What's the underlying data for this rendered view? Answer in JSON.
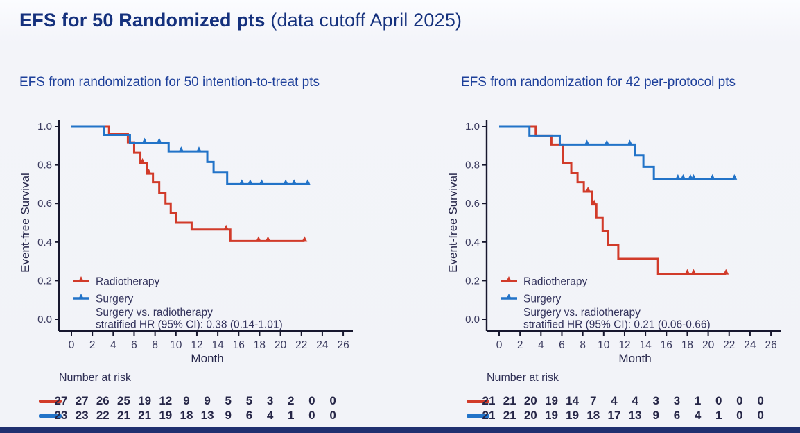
{
  "title": {
    "main": "EFS for 50 Randomized pts",
    "suffix": " (data cutoff April 2025)"
  },
  "chart_data": [
    {
      "type": "line",
      "subtitle": "EFS from randomization for 50 intention-to-treat pts",
      "xlabel": "Month",
      "ylabel": "Event-free Survival",
      "xlim": [
        0,
        26
      ],
      "ylim": [
        0.0,
        1.0
      ],
      "xticks": [
        0,
        2,
        4,
        6,
        8,
        10,
        12,
        14,
        16,
        18,
        20,
        22,
        24,
        26
      ],
      "yticks": [
        0.0,
        0.2,
        0.4,
        0.6,
        0.8,
        1.0
      ],
      "grid": false,
      "legend_position": "lower-left-inside",
      "legend_note": [
        "Surgery vs. radiotherapy",
        "stratified HR (95% CI): 0.38 (0.14-1.01)"
      ],
      "series": [
        {
          "name": "Radiotherapy",
          "color": "#d13b2a",
          "steps": [
            [
              0,
              1.0
            ],
            [
              3.6,
              0.96
            ],
            [
              5.4,
              0.917
            ],
            [
              6.0,
              0.863
            ],
            [
              6.6,
              0.81
            ],
            [
              7.2,
              0.755
            ],
            [
              7.8,
              0.71
            ],
            [
              8.4,
              0.655
            ],
            [
              9.0,
              0.6
            ],
            [
              9.5,
              0.55
            ],
            [
              10.0,
              0.5
            ],
            [
              11.5,
              0.465
            ],
            [
              15.2,
              0.405
            ]
          ],
          "censors": [
            6.8,
            7.4,
            14.8,
            17.9,
            18.8,
            22.3
          ],
          "end": 22.3
        },
        {
          "name": "Surgery",
          "color": "#2273c8",
          "steps": [
            [
              0,
              1.0
            ],
            [
              3.1,
              0.955
            ],
            [
              5.6,
              0.915
            ],
            [
              9.3,
              0.87
            ],
            [
              13.0,
              0.815
            ],
            [
              13.6,
              0.76
            ],
            [
              14.9,
              0.7
            ]
          ],
          "censors": [
            7.0,
            8.4,
            10.5,
            12.2,
            16.3,
            17.1,
            18.2,
            20.5,
            21.3,
            22.6
          ],
          "end": 22.6
        }
      ],
      "risk_table": {
        "label": "Number at risk",
        "months": [
          0,
          2,
          4,
          6,
          8,
          10,
          12,
          14,
          16,
          18,
          20,
          22,
          24,
          26
        ],
        "rows": [
          {
            "name": "Radiotherapy",
            "color": "#d13b2a",
            "values": [
              27,
              27,
              26,
              25,
              19,
              12,
              9,
              9,
              5,
              5,
              3,
              2,
              0,
              0
            ]
          },
          {
            "name": "Surgery",
            "color": "#2273c8",
            "values": [
              23,
              23,
              22,
              21,
              21,
              19,
              18,
              13,
              9,
              6,
              4,
              1,
              0,
              0
            ]
          }
        ]
      }
    },
    {
      "type": "line",
      "subtitle": "EFS from randomization for 42 per-protocol pts",
      "xlabel": "Month",
      "ylabel": "Event-free Survival",
      "xlim": [
        0,
        26
      ],
      "ylim": [
        0.0,
        1.0
      ],
      "xticks": [
        0,
        2,
        4,
        6,
        8,
        10,
        12,
        14,
        16,
        18,
        20,
        22,
        24,
        26
      ],
      "yticks": [
        0.0,
        0.2,
        0.4,
        0.6,
        0.8,
        1.0
      ],
      "grid": false,
      "legend_position": "lower-left-inside",
      "legend_note": [
        "Surgery vs. radiotherapy",
        "stratified HR (95% CI): 0.21 (0.06-0.66)"
      ],
      "series": [
        {
          "name": "Radiotherapy",
          "color": "#d13b2a",
          "steps": [
            [
              0,
              1.0
            ],
            [
              3.5,
              0.952
            ],
            [
              5.0,
              0.905
            ],
            [
              6.1,
              0.81
            ],
            [
              6.9,
              0.757
            ],
            [
              7.5,
              0.71
            ],
            [
              8.1,
              0.662
            ],
            [
              8.9,
              0.595
            ],
            [
              9.3,
              0.528
            ],
            [
              9.9,
              0.455
            ],
            [
              10.4,
              0.385
            ],
            [
              11.4,
              0.313
            ],
            [
              15.2,
              0.235
            ]
          ],
          "censors": [
            8.5,
            9.1,
            18.0,
            18.6,
            21.7
          ],
          "end": 21.7
        },
        {
          "name": "Surgery",
          "color": "#2273c8",
          "steps": [
            [
              0,
              1.0
            ],
            [
              2.9,
              0.952
            ],
            [
              5.8,
              0.905
            ],
            [
              13.0,
              0.85
            ],
            [
              13.8,
              0.79
            ],
            [
              14.8,
              0.727
            ]
          ],
          "censors": [
            8.4,
            10.3,
            12.5,
            17.1,
            17.6,
            18.3,
            18.6,
            20.4,
            22.5
          ],
          "end": 22.5
        }
      ],
      "risk_table": {
        "label": "Number at risk",
        "months": [
          0,
          2,
          4,
          6,
          8,
          10,
          12,
          14,
          16,
          18,
          20,
          22,
          24,
          26
        ],
        "rows": [
          {
            "name": "Radiotherapy",
            "color": "#d13b2a",
            "values": [
              21,
              21,
              20,
              19,
              14,
              7,
              4,
              4,
              3,
              3,
              1,
              0,
              0,
              0
            ]
          },
          {
            "name": "Surgery",
            "color": "#2273c8",
            "values": [
              21,
              21,
              20,
              19,
              19,
              18,
              17,
              13,
              9,
              6,
              4,
              1,
              0,
              0
            ]
          }
        ]
      }
    }
  ],
  "colors": {
    "radiotherapy": "#d13b2a",
    "surgery": "#2273c8",
    "title_navy": "#15317d",
    "subtitle_blue": "#1d3f9a",
    "bottom_bar": "#203070"
  }
}
